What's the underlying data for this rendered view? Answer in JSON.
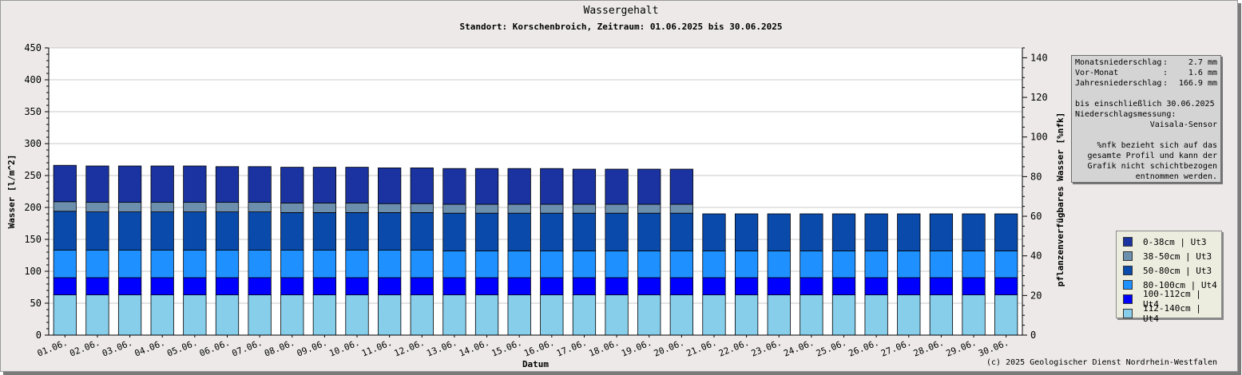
{
  "chart_data": {
    "type": "bar",
    "stacked": true,
    "title": "Wassergehalt",
    "subtitle": "Standort: Korschenbroich, Zeitraum: 01.06.2025 bis 30.06.2025",
    "xlabel": "Datum",
    "ylabel": "Wasser [l/m^2]",
    "y2label": "pflanzenverfügbares Wasser [%nfk]",
    "ylim": [
      0,
      450
    ],
    "yticks": [
      0,
      50,
      100,
      150,
      200,
      250,
      300,
      350,
      400,
      450
    ],
    "y2lim": [
      0,
      145
    ],
    "y2ticks": [
      0,
      20,
      40,
      60,
      80,
      100,
      120,
      140
    ],
    "grid": true,
    "legend_position": "right",
    "categories": [
      "01.06.",
      "02.06.",
      "03.06.",
      "04.06.",
      "05.06.",
      "06.06.",
      "07.06.",
      "08.06.",
      "09.06.",
      "10.06.",
      "11.06.",
      "12.06.",
      "13.06.",
      "14.06.",
      "15.06.",
      "16.06.",
      "17.06.",
      "18.06.",
      "19.06.",
      "20.06.",
      "21.06.",
      "22.06.",
      "23.06.",
      "24.06.",
      "25.06.",
      "26.06.",
      "27.06.",
      "28.06.",
      "29.06.",
      "30.06."
    ],
    "series": [
      {
        "name": "112-140cm | Ut4",
        "color": "#87ceeb",
        "values": [
          63,
          63,
          63,
          63,
          63,
          63,
          63,
          63,
          63,
          63,
          63,
          63,
          63,
          63,
          63,
          63,
          63,
          63,
          63,
          63,
          63,
          63,
          63,
          63,
          63,
          63,
          63,
          63,
          63,
          63
        ]
      },
      {
        "name": "100-112cm | Ut4",
        "color": "#0000ff",
        "values": [
          27,
          27,
          27,
          27,
          27,
          27,
          27,
          27,
          27,
          27,
          27,
          27,
          27,
          27,
          27,
          27,
          27,
          27,
          27,
          27,
          27,
          27,
          27,
          27,
          27,
          27,
          27,
          27,
          27,
          27
        ]
      },
      {
        "name": "80-100cm | Ut4",
        "color": "#1e90ff",
        "values": [
          43,
          43,
          43,
          43,
          43,
          43,
          43,
          43,
          43,
          43,
          43,
          43,
          42,
          42,
          42,
          42,
          42,
          42,
          42,
          42,
          42,
          42,
          42,
          42,
          42,
          42,
          42,
          42,
          42,
          42
        ]
      },
      {
        "name": "50-80cm | Ut3",
        "color": "#0a4aab",
        "values": [
          61,
          60,
          60,
          60,
          60,
          60,
          60,
          59,
          59,
          59,
          59,
          59,
          59,
          59,
          59,
          59,
          59,
          59,
          59,
          59,
          58,
          58,
          58,
          58,
          58,
          58,
          58,
          58,
          58,
          58
        ]
      },
      {
        "name": "38-50cm | Ut3",
        "color": "#6d8fae",
        "values": [
          15,
          15,
          15,
          15,
          15,
          15,
          15,
          15,
          15,
          15,
          14,
          14,
          14,
          14,
          14,
          14,
          14,
          14,
          14,
          14,
          0,
          0,
          0,
          0,
          0,
          0,
          0,
          0,
          0,
          0
        ]
      },
      {
        "name": "0-38cm | Ut3",
        "color": "#1a33a0",
        "values": [
          57,
          57,
          57,
          57,
          57,
          56,
          56,
          56,
          56,
          56,
          56,
          56,
          56,
          56,
          56,
          56,
          55,
          55,
          55,
          55,
          0,
          0,
          0,
          0,
          0,
          0,
          0,
          0,
          0,
          0
        ]
      }
    ]
  },
  "info": {
    "rows": [
      {
        "label": "Monatsniederschlag",
        "sep": ":",
        "value": "2.7 mm"
      },
      {
        "label": "Vor-Monat",
        "sep": ":",
        "value": "1.6 mm"
      },
      {
        "label": "Jahresniederschlag",
        "sep": ":",
        "value": "166.9 mm"
      }
    ],
    "until": "bis einschließlich 30.06.2025",
    "measurement_label": "Niederschlagsmessung:",
    "sensor": "Vaisala-Sensor",
    "note": "%nfk bezieht sich auf das gesamte Profil und kann der Grafik nicht schichtbezogen entnommen werden."
  },
  "copyright": "(c) 2025 Geologischer Dienst Nordrhein-Westfalen"
}
